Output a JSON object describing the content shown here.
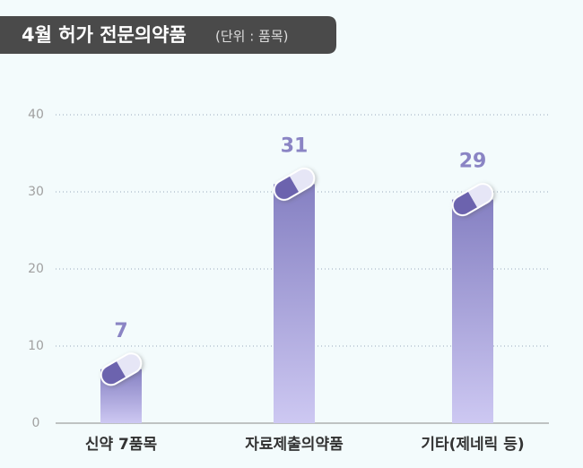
{
  "chart_data": {
    "type": "bar",
    "title": "4월 허가 전문의약품",
    "subtitle": "(단위 : 품목)",
    "categories": [
      "신약 7품목",
      "자료제출의약품",
      "기타(제네릭 등)"
    ],
    "values": [
      7,
      31,
      29
    ],
    "color": "#8a84c4",
    "ylim": [
      0,
      40
    ],
    "yticks": [
      0,
      10,
      20,
      30,
      40
    ],
    "grid": true
  }
}
